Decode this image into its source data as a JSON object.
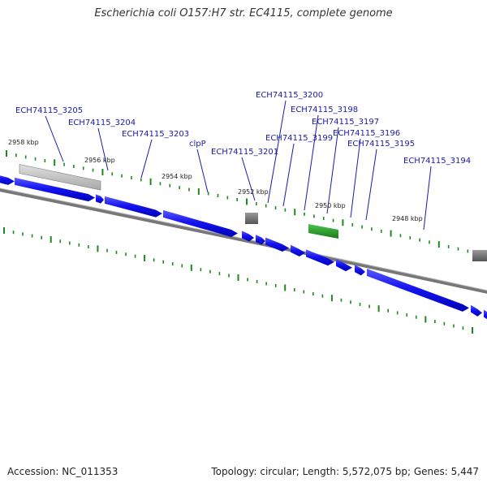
{
  "title": "Escherichia coli O157:H7 str. EC4115, complete genome",
  "footer": {
    "accession": "Accession: NC_011353",
    "summary": "Topology: circular; Length: 5,572,075 bp; Genes: 5,447"
  },
  "colors": {
    "gene_blue": "#1a1af0",
    "backbone": "#808080",
    "tick_green": "#1a8a1a",
    "label_blue": "#1a1aa6",
    "rna_green": "#2a9a2a",
    "pseudo_gray": "#8a8a8a"
  },
  "kbp_labels": [
    "2958 kbp",
    "2956 kbp",
    "2954 kbp",
    "2952 kbp",
    "2950 kbp",
    "2948 kbp"
  ],
  "gene_labels": [
    "ECH74115_3205",
    "ECH74115_3204",
    "ECH74115_3203",
    "clpP",
    "ECH74115_3201",
    "ECH74115_3200",
    "ECH74115_3199",
    "ECH74115_3198",
    "ECH74115_3197",
    "ECH74115_3196",
    "ECH74115_3195",
    "ECH74115_3194"
  ]
}
